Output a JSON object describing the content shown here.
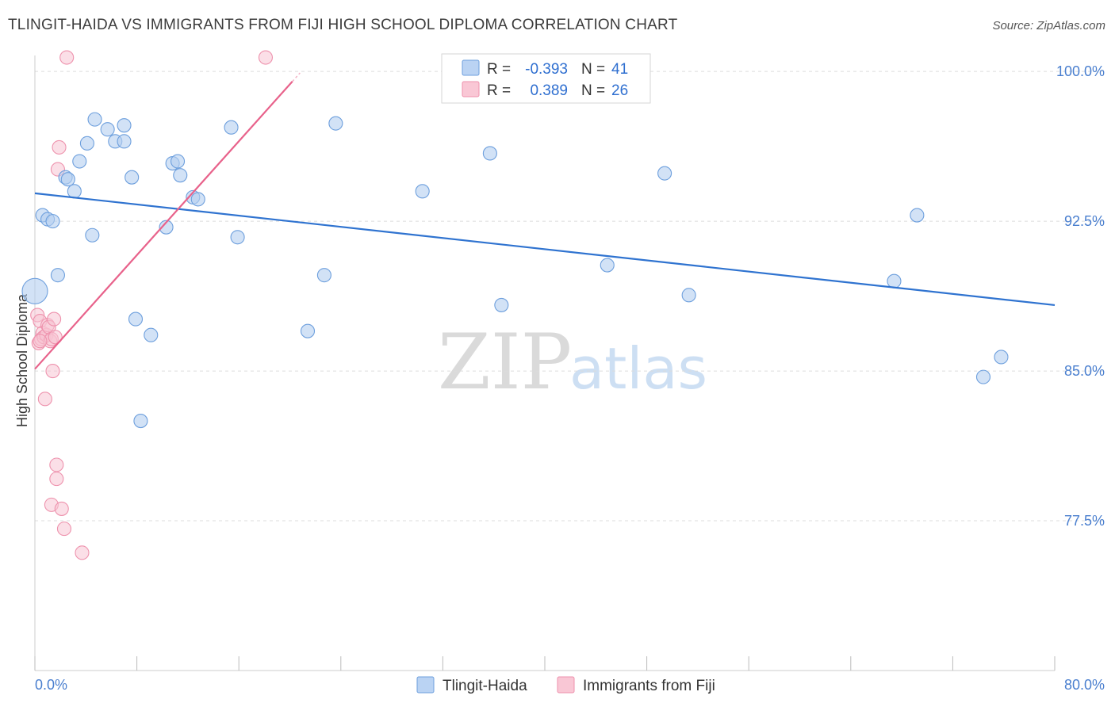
{
  "header": {
    "title": "TLINGIT-HAIDA VS IMMIGRANTS FROM FIJI HIGH SCHOOL DIPLOMA CORRELATION CHART",
    "source": "Source: ZipAtlas.com"
  },
  "watermark": {
    "zip": "ZIP",
    "atlas": "atlas"
  },
  "legend": {
    "r_label": "R =",
    "n_label": "N =",
    "rows": [
      {
        "name": "Tlingit-Haida",
        "r": "-0.393",
        "n": "41",
        "color": "#a9c8f0"
      },
      {
        "name": "Immigrants from Fiji",
        "r": "0.389",
        "n": "26",
        "color": "#f7b6c8"
      }
    ]
  },
  "colors": {
    "blue_fill": "#b4cef0",
    "blue_stroke": "#6d9fdd",
    "blue_line": "#2f73d0",
    "pink_fill": "#f8c4d3",
    "pink_stroke": "#ee92ad",
    "pink_line": "#e8628b",
    "grid": "#dcdcdc",
    "axis": "#cccccc"
  },
  "chart_data": {
    "type": "scatter",
    "title": "TLINGIT-HAIDA VS IMMIGRANTS FROM FIJI HIGH SCHOOL DIPLOMA CORRELATION CHART",
    "xlabel": "",
    "ylabel": "High School Diploma",
    "xlim": [
      0,
      80
    ],
    "ylim": [
      70.0,
      100.8
    ],
    "y_ticks": [
      77.5,
      85.0,
      92.5,
      100.0
    ],
    "y_tick_labels": [
      "77.5%",
      "85.0%",
      "92.5%",
      "100.0%"
    ],
    "x_tick_labels": [
      "0.0%",
      "80.0%"
    ],
    "grid": true,
    "series": [
      {
        "name": "Tlingit-Haida",
        "r": -0.393,
        "n": 41,
        "trend": {
          "x": [
            0,
            80
          ],
          "y": [
            93.9,
            88.3
          ]
        },
        "points": [
          {
            "x": 0.0,
            "y": 89.0,
            "big": true
          },
          {
            "x": 0.6,
            "y": 92.8
          },
          {
            "x": 1.0,
            "y": 92.6
          },
          {
            "x": 1.4,
            "y": 92.5
          },
          {
            "x": 1.8,
            "y": 89.8
          },
          {
            "x": 2.4,
            "y": 94.7
          },
          {
            "x": 2.6,
            "y": 94.6
          },
          {
            "x": 3.1,
            "y": 94.0
          },
          {
            "x": 3.5,
            "y": 95.5
          },
          {
            "x": 4.1,
            "y": 96.4
          },
          {
            "x": 4.5,
            "y": 91.8
          },
          {
            "x": 4.7,
            "y": 97.6
          },
          {
            "x": 5.7,
            "y": 97.1
          },
          {
            "x": 6.3,
            "y": 96.5
          },
          {
            "x": 7.0,
            "y": 96.5
          },
          {
            "x": 7.0,
            "y": 97.3
          },
          {
            "x": 7.6,
            "y": 94.7
          },
          {
            "x": 7.9,
            "y": 87.6
          },
          {
            "x": 8.3,
            "y": 82.5
          },
          {
            "x": 9.1,
            "y": 86.8
          },
          {
            "x": 10.3,
            "y": 92.2
          },
          {
            "x": 10.8,
            "y": 95.4
          },
          {
            "x": 11.2,
            "y": 95.5
          },
          {
            "x": 11.4,
            "y": 94.8
          },
          {
            "x": 12.4,
            "y": 93.7
          },
          {
            "x": 12.8,
            "y": 93.6
          },
          {
            "x": 15.4,
            "y": 97.2
          },
          {
            "x": 15.9,
            "y": 91.7
          },
          {
            "x": 21.4,
            "y": 87.0
          },
          {
            "x": 22.7,
            "y": 89.8
          },
          {
            "x": 23.6,
            "y": 97.4
          },
          {
            "x": 30.4,
            "y": 94.0
          },
          {
            "x": 35.7,
            "y": 95.9
          },
          {
            "x": 36.6,
            "y": 88.3
          },
          {
            "x": 44.9,
            "y": 90.3
          },
          {
            "x": 49.4,
            "y": 94.9
          },
          {
            "x": 51.3,
            "y": 88.8
          },
          {
            "x": 67.4,
            "y": 89.5
          },
          {
            "x": 69.2,
            "y": 92.8
          },
          {
            "x": 74.4,
            "y": 84.7
          },
          {
            "x": 75.8,
            "y": 85.7
          }
        ]
      },
      {
        "name": "Immigrants from Fiji",
        "r": 0.389,
        "n": 26,
        "trend": {
          "x": [
            0,
            20.2
          ],
          "y": [
            85.1,
            99.5
          ]
        },
        "points": [
          {
            "x": 0.2,
            "y": 87.8
          },
          {
            "x": 0.3,
            "y": 86.4
          },
          {
            "x": 0.4,
            "y": 87.5
          },
          {
            "x": 0.5,
            "y": 86.6
          },
          {
            "x": 0.6,
            "y": 86.9
          },
          {
            "x": 0.7,
            "y": 86.7
          },
          {
            "x": 0.8,
            "y": 83.6
          },
          {
            "x": 0.9,
            "y": 86.8
          },
          {
            "x": 1.0,
            "y": 87.3
          },
          {
            "x": 1.1,
            "y": 87.2
          },
          {
            "x": 1.2,
            "y": 86.5
          },
          {
            "x": 1.3,
            "y": 86.6
          },
          {
            "x": 1.3,
            "y": 78.3
          },
          {
            "x": 1.4,
            "y": 85.0
          },
          {
            "x": 1.5,
            "y": 87.6
          },
          {
            "x": 1.6,
            "y": 86.7
          },
          {
            "x": 1.7,
            "y": 80.3
          },
          {
            "x": 1.7,
            "y": 79.6
          },
          {
            "x": 1.8,
            "y": 95.1
          },
          {
            "x": 1.9,
            "y": 96.2
          },
          {
            "x": 2.1,
            "y": 78.1
          },
          {
            "x": 2.3,
            "y": 77.1
          },
          {
            "x": 2.5,
            "y": 100.7
          },
          {
            "x": 3.7,
            "y": 75.9
          },
          {
            "x": 18.1,
            "y": 100.7
          },
          {
            "x": 0.4,
            "y": 86.5
          }
        ]
      }
    ]
  }
}
